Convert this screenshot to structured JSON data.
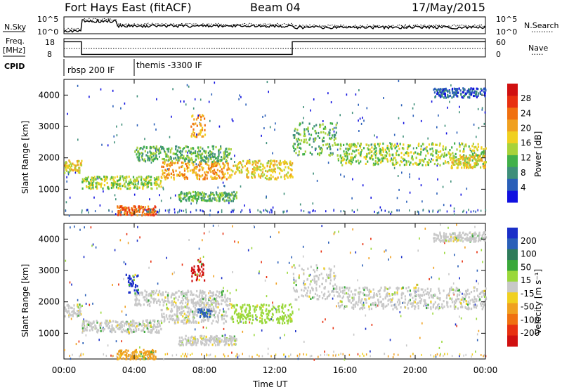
{
  "header": {
    "station": "Fort Hays East (fitACF)",
    "beam": "Beam 04",
    "date": "17/May/2015"
  },
  "panels": {
    "nsky": {
      "label": "N.Sky",
      "left_ticks": [
        "10^5",
        "10^0"
      ],
      "right_ticks": [
        "10^5",
        "10^0"
      ],
      "right_label": "N.Search",
      "right_legend": "·········"
    },
    "freq": {
      "label_line1": "Freq.",
      "label_line2": "[MHz]",
      "left_ticks": [
        "18",
        "8"
      ],
      "right_ticks": [
        "60",
        "0"
      ],
      "right_label": "Nave",
      "right_legend": "·····"
    },
    "cpid": {
      "label": "CPID",
      "segments": [
        "rbsp 200 IF",
        "themis -3300 IF"
      ]
    }
  },
  "axes": {
    "ylabel": "Slant Range [km]",
    "yticks": [
      "1000",
      "2000",
      "3000",
      "4000"
    ],
    "xticks": [
      "00:00",
      "04:00",
      "08:00",
      "12:00",
      "16:00",
      "20:00",
      "00:00"
    ],
    "xlabel": "Time UT"
  },
  "colorbars": {
    "power": {
      "label": "Power [dB]",
      "ticks": [
        "4",
        "8",
        "12",
        "16",
        "20",
        "24",
        "28"
      ],
      "colors": [
        "#1010e0",
        "#2a5fb8",
        "#3f8f7a",
        "#42b04a",
        "#a8d23a",
        "#f0d020",
        "#f0a020",
        "#f07010",
        "#e83010",
        "#d01010"
      ]
    },
    "velocity": {
      "label": "Velocity [m s⁻¹]",
      "ticks": [
        "200",
        "100",
        "50",
        "15",
        "-15",
        "-50",
        "-100",
        "-200"
      ],
      "colors": [
        "#1a2fc8",
        "#2a5fb8",
        "#2e7b5a",
        "#3aa83a",
        "#9ad83a",
        "#c8c8c8",
        "#f0d020",
        "#f0a020",
        "#f07010",
        "#e83010",
        "#d01010"
      ]
    }
  },
  "chart_data": {
    "type": "heatmap",
    "xlabel": "Time UT",
    "ylabel": "Slant Range [km]",
    "x_range_hours": [
      0,
      24
    ],
    "ylim_km": [
      180,
      4500
    ],
    "cpid_segments": [
      {
        "name": "rbsp 200 IF",
        "start_h": 0,
        "end_h": 4
      },
      {
        "name": "themis -3300 IF",
        "start_h": 4,
        "end_h": 24
      }
    ],
    "freq_mhz": [
      {
        "start_h": 0,
        "end_h": 1,
        "value": 17
      },
      {
        "start_h": 1,
        "end_h": 13,
        "value": 9.5
      },
      {
        "start_h": 13,
        "end_h": 24,
        "value": 17
      }
    ],
    "power_regions": [
      {
        "t0": 0.0,
        "t1": 1.0,
        "r0": 1550,
        "r1": 1950,
        "level": 5
      },
      {
        "t0": 1.0,
        "t1": 5.5,
        "r0": 1050,
        "r1": 1450,
        "level": 4
      },
      {
        "t0": 5.5,
        "t1": 9.5,
        "r0": 1350,
        "r1": 1900,
        "level": 6
      },
      {
        "t0": 9.5,
        "t1": 13.0,
        "r0": 1350,
        "r1": 1950,
        "level": 5
      },
      {
        "t0": 4.0,
        "t1": 9.5,
        "r0": 1900,
        "r1": 2400,
        "level": 3
      },
      {
        "t0": 7.2,
        "t1": 8.0,
        "r0": 2700,
        "r1": 3400,
        "level": 6
      },
      {
        "t0": 6.5,
        "t1": 9.8,
        "r0": 650,
        "r1": 950,
        "level": 3
      },
      {
        "t0": 3.0,
        "t1": 5.2,
        "r0": 200,
        "r1": 500,
        "level": 7
      },
      {
        "t0": 13.0,
        "t1": 15.5,
        "r0": 2100,
        "r1": 3200,
        "level": 3
      },
      {
        "t0": 15.5,
        "t1": 24.0,
        "r0": 1800,
        "r1": 2500,
        "level": 4
      },
      {
        "t0": 22.0,
        "t1": 24.0,
        "r0": 1700,
        "r1": 2100,
        "level": 5
      },
      {
        "t0": 21.0,
        "t1": 24.0,
        "r0": 3950,
        "r1": 4250,
        "level": 1
      }
    ],
    "velocity_regions": [
      {
        "t0": 0.0,
        "t1": 1.0,
        "r0": 1550,
        "r1": 1950,
        "vel": "ground"
      },
      {
        "t0": 1.0,
        "t1": 5.5,
        "r0": 1050,
        "r1": 1450,
        "vel": "ground"
      },
      {
        "t0": 5.5,
        "t1": 9.5,
        "r0": 1350,
        "r1": 1900,
        "vel": "ground"
      },
      {
        "t0": 9.5,
        "t1": 13.0,
        "r0": 1350,
        "r1": 1950,
        "vel": "15"
      },
      {
        "t0": 4.0,
        "t1": 9.5,
        "r0": 1900,
        "r1": 2400,
        "vel": "ground"
      },
      {
        "t0": 7.2,
        "t1": 8.0,
        "r0": 2700,
        "r1": 3400,
        "vel": "-200"
      },
      {
        "t0": 3.5,
        "t1": 4.2,
        "r0": 2300,
        "r1": 2900,
        "vel": "200"
      },
      {
        "t0": 7.6,
        "t1": 8.3,
        "r0": 1550,
        "r1": 1800,
        "vel": "100"
      },
      {
        "t0": 6.5,
        "t1": 9.8,
        "r0": 650,
        "r1": 950,
        "vel": "ground"
      },
      {
        "t0": 3.0,
        "t1": 5.2,
        "r0": 200,
        "r1": 500,
        "vel": "-50"
      },
      {
        "t0": 13.0,
        "t1": 15.5,
        "r0": 2100,
        "r1": 3200,
        "vel": "ground"
      },
      {
        "t0": 15.5,
        "t1": 24.0,
        "r0": 1800,
        "r1": 2500,
        "vel": "ground"
      },
      {
        "t0": 21.0,
        "t1": 24.0,
        "r0": 3950,
        "r1": 4250,
        "vel": "ground"
      }
    ]
  }
}
